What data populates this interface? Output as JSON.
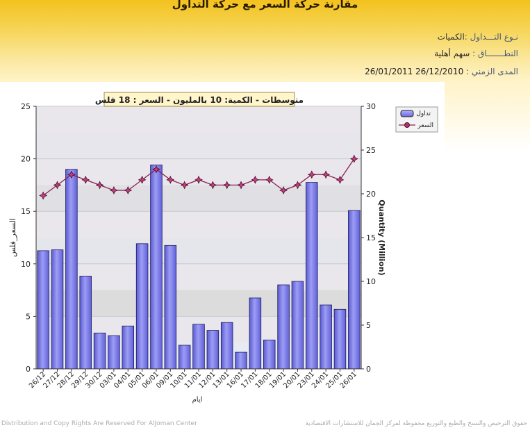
{
  "header": {
    "title": "مقارنة حركة السعر مع حركة التداول",
    "type_label": "نـوع التـــداول :",
    "type_value": "الكميات",
    "scope_label": "النطـــــــاق :",
    "scope_value": "سهم   أهلية",
    "range_label": "المدى الزمني :",
    "range_value": "26/01/2011 26/12/2010"
  },
  "footer": {
    "left": "Distribution and Copy Rights Are Reserved For AlJoman Center",
    "right": "حقوق الترخيص والنسخ والطبع والتوزيع محفوظة لمركز الجمان للاستشارات الاقتصادية"
  },
  "chart_data": {
    "type": "bar",
    "title": "متوسطات - الكمية: 10 بالمليون   - السعر : 18 فلس",
    "xlabel": "ايام",
    "ylabel_left": "السعر_فلس",
    "ylabel_right": "Quantity (Million)",
    "ylim_left": [
      0,
      25
    ],
    "yticks_left": [
      0,
      5,
      10,
      15,
      20,
      25
    ],
    "ylim_right": [
      0,
      30
    ],
    "yticks_right": [
      0,
      5,
      10,
      15,
      20,
      25,
      30
    ],
    "legend_position": "top-right",
    "categories": [
      "26/12",
      "27/12",
      "28/12",
      "29/12",
      "30/12",
      "03/01",
      "04/01",
      "05/01",
      "06/01",
      "09/01",
      "10/01",
      "11/01",
      "12/01",
      "13/01",
      "16/01",
      "17/01",
      "18/01",
      "19/01",
      "20/01",
      "23/01",
      "24/01",
      "25/01",
      "26/01"
    ],
    "series": [
      {
        "name": "تداول",
        "kind": "bar",
        "axis": "right",
        "color": "#8080e8",
        "values": [
          13.5,
          13.6,
          22.8,
          10.6,
          4.1,
          3.8,
          4.9,
          14.3,
          23.3,
          14.1,
          2.7,
          5.1,
          4.4,
          5.3,
          1.9,
          8.1,
          3.3,
          9.6,
          10.0,
          21.3,
          7.3,
          6.8,
          18.1
        ]
      },
      {
        "name": "السعر",
        "kind": "line",
        "axis": "left",
        "color": "#8a2050",
        "values": [
          16.5,
          17.5,
          18.5,
          18.0,
          17.5,
          17.0,
          17.0,
          18.0,
          19.0,
          18.0,
          17.5,
          18.0,
          17.5,
          17.5,
          17.5,
          18.0,
          18.0,
          17.0,
          17.5,
          18.5,
          18.5,
          18.0,
          20.0
        ]
      }
    ]
  }
}
